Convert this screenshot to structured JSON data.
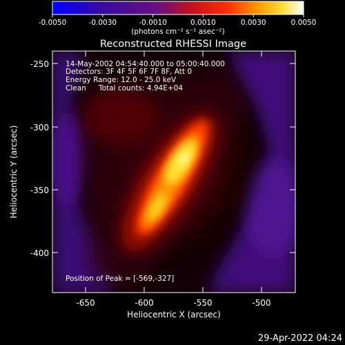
{
  "colorbar": {
    "ticks": [
      "-0.0050",
      "-0.0030",
      "-0.0010",
      "0.0010",
      "0.0030",
      "0.0050"
    ],
    "units": "(photons cm⁻² s⁻¹ asec⁻²)"
  },
  "title": "Reconstructed RHESSI Image",
  "info": {
    "time": "14-May-2002 04:54:40.000 to 05:00:40.000",
    "detectors": "Detectors: 3F 4F 5F 6F 7F 8F, Att 0",
    "energy": "Energy Range: 12.0 - 25.0 keV",
    "clean_label": "Clean",
    "counts": "Total counts: 4.94E+04"
  },
  "peak": "Position of Peak = [-569,-327]",
  "axes": {
    "xlabel": "Heliocentric X (arcsec)",
    "ylabel": "Heliocentric Y (arcsec)",
    "xticks": [
      "-650",
      "-600",
      "-550",
      "-500"
    ],
    "yticks": [
      "-250",
      "-300",
      "-350",
      "-400"
    ]
  },
  "footer_date": "29-Apr-2022 04:24"
}
